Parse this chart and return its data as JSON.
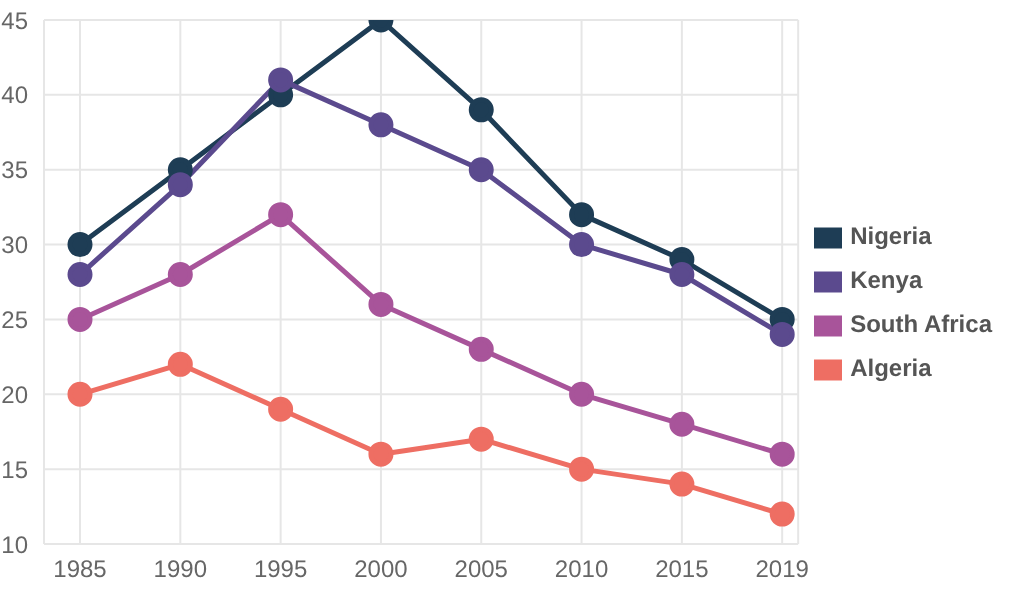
{
  "chart_data": {
    "type": "line",
    "categories": [
      "1985",
      "1990",
      "1995",
      "2000",
      "2005",
      "2010",
      "2015",
      "2019"
    ],
    "series": [
      {
        "name": "Nigeria",
        "color": "#1e3d55",
        "values": [
          30,
          35,
          40,
          45,
          39,
          32,
          29,
          25
        ]
      },
      {
        "name": "Kenya",
        "color": "#5b4a8e",
        "values": [
          28,
          34,
          41,
          38,
          35,
          30,
          28,
          24
        ]
      },
      {
        "name": "South Africa",
        "color": "#a8549a",
        "values": [
          25,
          28,
          32,
          26,
          23,
          20,
          18,
          16
        ]
      },
      {
        "name": "Algeria",
        "color": "#ee6e63",
        "values": [
          20,
          22,
          19,
          16,
          17,
          15,
          14,
          12
        ]
      }
    ],
    "ylim": [
      10,
      45
    ],
    "yticks": [
      10,
      15,
      20,
      25,
      30,
      35,
      40,
      45
    ],
    "grid": true,
    "legend": "right",
    "marker": "circle",
    "line_style": "solid"
  }
}
